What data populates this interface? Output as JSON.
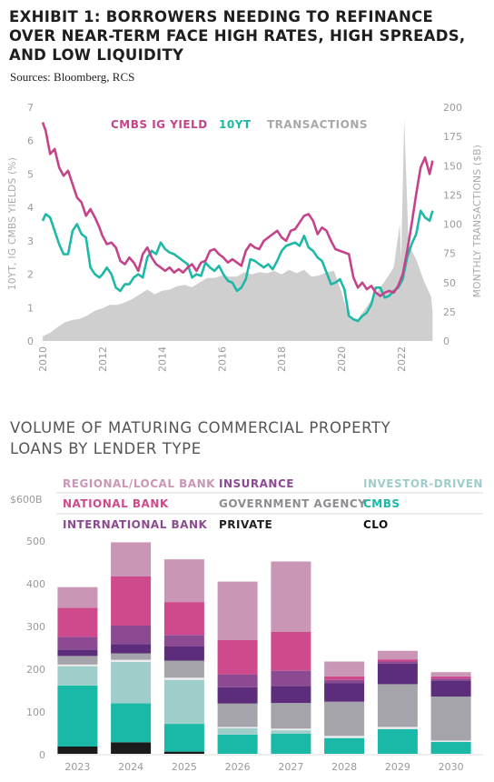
{
  "header": {
    "title_lines": [
      "EXHIBIT 1: BORROWERS NEEDING TO REFINANCE",
      "OVER NEAR-TERM FACE HIGH RATES, HIGH SPREADS,",
      "AND LOW LIQUIDITY"
    ],
    "sources": "Sources: Bloomberg, RCS"
  },
  "section2": {
    "title_lines": [
      "VOLUME OF MATURING COMMERCIAL PROPERTY",
      "LOANS BY LENDER TYPE"
    ]
  },
  "colors": {
    "cmbs_ig_yield": "#c4438a",
    "ten_yt": "#1fb8a6",
    "transactions": "#cfcfcf",
    "regional_local_bank": "#c997b5",
    "national_bank": "#cf4a8d",
    "international_bank": "#8c4a92",
    "insurance": "#5b2d7a",
    "government_agency": "#a4a4aa",
    "private": "#ececec",
    "investor_driven": "#9fcdca",
    "cmbs": "#1ab8a6",
    "clo": "#1b1b1b"
  },
  "chart_data": [
    {
      "type": "line",
      "left_axis_label": "10YT, IG CMBS YIELDS (%)",
      "right_axis_label": "MONTHLY TRANSACTIONS ($B)",
      "left_ylim": [
        0,
        7
      ],
      "right_ylim": [
        0,
        200
      ],
      "left_ticks": [
        "0",
        "1",
        "2",
        "3",
        "4",
        "5",
        "6",
        "7"
      ],
      "right_ticks": [
        "0",
        "25",
        "50",
        "75",
        "100",
        "125",
        "150",
        "175",
        "200"
      ],
      "x_ticks": [
        "2010",
        "2012",
        "2014",
        "2016",
        "2018",
        "2020",
        "2022"
      ],
      "x_range": [
        2010,
        2023.1
      ],
      "legend": [
        "CMBS IG YIELD",
        "10YT",
        "TRANSACTIONS"
      ],
      "series": [
        {
          "name": "CMBS IG YIELD",
          "axis": "left",
          "x": [
            2010.0,
            2010.1,
            2010.25,
            2010.4,
            2010.55,
            2010.7,
            2010.85,
            2011.0,
            2011.15,
            2011.3,
            2011.45,
            2011.6,
            2011.75,
            2011.9,
            2012.0,
            2012.15,
            2012.3,
            2012.45,
            2012.6,
            2012.75,
            2012.9,
            2013.05,
            2013.2,
            2013.35,
            2013.5,
            2013.65,
            2013.8,
            2013.95,
            2014.1,
            2014.25,
            2014.4,
            2014.55,
            2014.7,
            2014.85,
            2015.0,
            2015.15,
            2015.3,
            2015.45,
            2015.6,
            2015.75,
            2015.9,
            2016.05,
            2016.2,
            2016.35,
            2016.5,
            2016.65,
            2016.8,
            2016.95,
            2017.1,
            2017.25,
            2017.4,
            2017.55,
            2017.7,
            2017.85,
            2018.0,
            2018.15,
            2018.3,
            2018.45,
            2018.6,
            2018.75,
            2018.9,
            2019.05,
            2019.2,
            2019.35,
            2019.5,
            2019.65,
            2019.8,
            2019.95,
            2020.1,
            2020.25,
            2020.4,
            2020.55,
            2020.7,
            2020.85,
            2021.0,
            2021.15,
            2021.3,
            2021.45,
            2021.6,
            2021.75,
            2021.9,
            2022.05,
            2022.2,
            2022.35,
            2022.5,
            2022.65,
            2022.8,
            2022.95,
            2023.05
          ],
          "values": [
            6.55,
            6.3,
            5.6,
            5.75,
            5.2,
            4.95,
            5.1,
            4.7,
            4.3,
            4.15,
            3.75,
            3.95,
            3.7,
            3.4,
            3.15,
            2.9,
            2.95,
            2.8,
            2.4,
            2.3,
            2.5,
            2.35,
            2.1,
            2.6,
            2.8,
            2.5,
            2.3,
            2.2,
            2.1,
            2.2,
            2.05,
            2.15,
            2.05,
            2.2,
            2.3,
            2.1,
            2.35,
            2.4,
            2.7,
            2.75,
            2.6,
            2.5,
            2.35,
            2.45,
            2.35,
            2.25,
            2.7,
            2.9,
            2.8,
            2.75,
            3.0,
            3.1,
            3.2,
            3.3,
            3.1,
            3.0,
            3.3,
            3.35,
            3.55,
            3.75,
            3.8,
            3.6,
            3.2,
            3.4,
            3.3,
            3.0,
            2.75,
            2.7,
            2.65,
            2.6,
            1.9,
            1.6,
            1.75,
            1.55,
            1.65,
            1.45,
            1.35,
            1.45,
            1.5,
            1.45,
            1.65,
            2.0,
            2.7,
            3.5,
            4.4,
            5.2,
            5.5,
            5.0,
            5.4
          ]
        },
        {
          "name": "10YT",
          "axis": "left",
          "x": [
            2010.0,
            2010.1,
            2010.25,
            2010.4,
            2010.55,
            2010.7,
            2010.85,
            2011.0,
            2011.15,
            2011.3,
            2011.45,
            2011.6,
            2011.75,
            2011.9,
            2012.0,
            2012.15,
            2012.3,
            2012.45,
            2012.6,
            2012.75,
            2012.9,
            2013.05,
            2013.2,
            2013.35,
            2013.5,
            2013.65,
            2013.8,
            2013.95,
            2014.1,
            2014.25,
            2014.4,
            2014.55,
            2014.7,
            2014.85,
            2015.0,
            2015.15,
            2015.3,
            2015.45,
            2015.6,
            2015.75,
            2015.9,
            2016.05,
            2016.2,
            2016.35,
            2016.5,
            2016.65,
            2016.8,
            2016.95,
            2017.1,
            2017.25,
            2017.4,
            2017.55,
            2017.7,
            2017.85,
            2018.0,
            2018.15,
            2018.3,
            2018.45,
            2018.6,
            2018.75,
            2018.9,
            2019.05,
            2019.2,
            2019.35,
            2019.5,
            2019.65,
            2019.8,
            2019.95,
            2020.1,
            2020.25,
            2020.4,
            2020.55,
            2020.7,
            2020.85,
            2021.0,
            2021.15,
            2021.3,
            2021.45,
            2021.6,
            2021.75,
            2021.9,
            2022.05,
            2022.2,
            2022.35,
            2022.5,
            2022.65,
            2022.8,
            2022.95,
            2023.05
          ],
          "values": [
            3.6,
            3.8,
            3.7,
            3.3,
            2.9,
            2.6,
            2.6,
            3.3,
            3.5,
            3.2,
            3.1,
            2.2,
            2.0,
            1.9,
            2.0,
            2.2,
            2.0,
            1.6,
            1.5,
            1.7,
            1.7,
            1.9,
            2.0,
            1.9,
            2.5,
            2.7,
            2.6,
            2.95,
            2.75,
            2.65,
            2.6,
            2.5,
            2.4,
            2.3,
            1.9,
            2.0,
            1.95,
            2.35,
            2.2,
            2.1,
            2.25,
            2.0,
            1.8,
            1.75,
            1.5,
            1.6,
            1.85,
            2.45,
            2.4,
            2.3,
            2.2,
            2.3,
            2.15,
            2.4,
            2.7,
            2.85,
            2.9,
            2.95,
            2.85,
            3.15,
            2.8,
            2.7,
            2.5,
            2.4,
            2.05,
            1.7,
            1.75,
            1.85,
            1.55,
            0.75,
            0.65,
            0.6,
            0.75,
            0.85,
            1.1,
            1.6,
            1.6,
            1.3,
            1.35,
            1.5,
            1.6,
            1.85,
            2.5,
            2.9,
            3.2,
            3.9,
            3.7,
            3.6,
            3.9
          ]
        },
        {
          "name": "TRANSACTIONS",
          "axis": "right",
          "x": [
            2010.0,
            2010.25,
            2010.5,
            2010.75,
            2011.0,
            2011.25,
            2011.5,
            2011.75,
            2012.0,
            2012.25,
            2012.5,
            2012.75,
            2013.0,
            2013.25,
            2013.5,
            2013.75,
            2014.0,
            2014.25,
            2014.5,
            2014.75,
            2015.0,
            2015.25,
            2015.5,
            2015.75,
            2016.0,
            2016.25,
            2016.5,
            2016.75,
            2017.0,
            2017.25,
            2017.5,
            2017.75,
            2018.0,
            2018.25,
            2018.5,
            2018.75,
            2019.0,
            2019.25,
            2019.5,
            2019.75,
            2020.0,
            2020.25,
            2020.5,
            2020.75,
            2021.0,
            2021.25,
            2021.5,
            2021.75,
            2021.95,
            2022.0,
            2022.1,
            2022.25,
            2022.5,
            2022.75,
            2023.0,
            2023.05
          ],
          "values": [
            4,
            7,
            12,
            16,
            18,
            19,
            22,
            26,
            28,
            31,
            31,
            33,
            36,
            40,
            44,
            40,
            43,
            44,
            47,
            48,
            46,
            50,
            54,
            54,
            56,
            55,
            55,
            59,
            57,
            59,
            58,
            60,
            57,
            61,
            58,
            61,
            55,
            56,
            59,
            60,
            42,
            20,
            17,
            26,
            35,
            44,
            53,
            63,
            100,
            70,
            190,
            82,
            70,
            52,
            38,
            25
          ]
        }
      ]
    },
    {
      "type": "bar",
      "stacked": true,
      "unit_label": "$600B",
      "ylim": [
        0,
        600
      ],
      "y_ticks": [
        "0",
        "100",
        "200",
        "300",
        "400",
        "500"
      ],
      "categories": [
        "2023",
        "2024",
        "2025",
        "2026",
        "2027",
        "2028",
        "2029",
        "2030"
      ],
      "legend": [
        "REGIONAL/LOCAL BANK",
        "INSURANCE",
        "INVESTOR-DRIVEN",
        "NATIONAL BANK",
        "GOVERNMENT AGENCY",
        "CMBS",
        "INTERNATIONAL BANK",
        "PRIVATE",
        "CLO"
      ],
      "series": [
        {
          "name": "CLO",
          "color_key": "clo",
          "values": [
            17,
            27,
            5,
            0,
            0,
            0,
            0,
            0
          ]
        },
        {
          "name": "CMBS",
          "color_key": "cmbs",
          "values": [
            143,
            91,
            65,
            45,
            47,
            37,
            58,
            28
          ]
        },
        {
          "name": "INVESTOR-DRIVEN",
          "color_key": "investor_driven",
          "values": [
            45,
            97,
            103,
            15,
            8,
            0,
            0,
            0
          ]
        },
        {
          "name": "PRIVATE",
          "color_key": "private",
          "values": [
            4,
            5,
            5,
            3,
            4,
            5,
            5,
            3
          ]
        },
        {
          "name": "GOVERNMENT AGENCY",
          "color_key": "government_agency",
          "values": [
            20,
            15,
            40,
            55,
            60,
            80,
            100,
            103
          ]
        },
        {
          "name": "INSURANCE",
          "color_key": "insurance",
          "values": [
            15,
            22,
            33,
            38,
            40,
            43,
            48,
            37
          ]
        },
        {
          "name": "INTERNATIONAL BANK",
          "color_key": "international_bank",
          "values": [
            30,
            43,
            27,
            30,
            36,
            8,
            5,
            5
          ]
        },
        {
          "name": "NATIONAL BANK",
          "color_key": "national_bank",
          "values": [
            68,
            115,
            77,
            80,
            90,
            8,
            5,
            5
          ]
        },
        {
          "name": "REGIONAL/LOCAL BANK",
          "color_key": "regional_local_bank",
          "values": [
            48,
            80,
            100,
            137,
            165,
            35,
            20,
            10
          ]
        }
      ]
    }
  ]
}
